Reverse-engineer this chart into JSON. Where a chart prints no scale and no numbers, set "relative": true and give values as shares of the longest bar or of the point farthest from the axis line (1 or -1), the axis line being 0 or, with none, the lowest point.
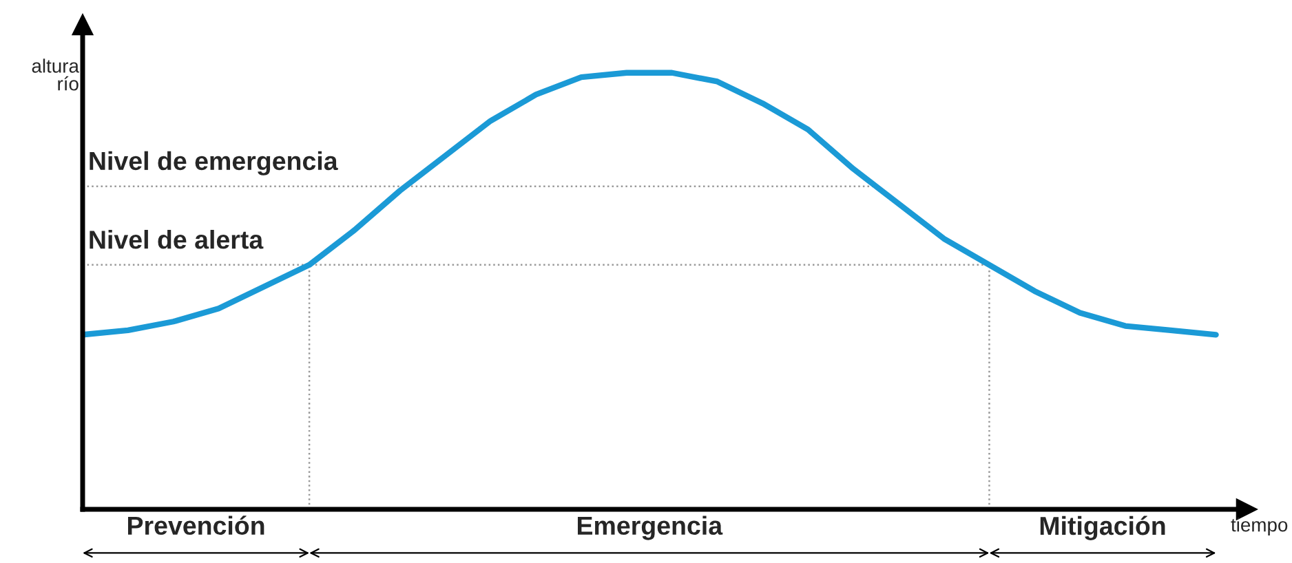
{
  "chart_data": {
    "type": "line",
    "relative": true,
    "xlabel": "tiempo",
    "ylabel": "altura\nrío",
    "marker": "none",
    "line_style": "solid",
    "categories": [
      null,
      null,
      null,
      null,
      null,
      null,
      null,
      null,
      null,
      null,
      null,
      null,
      null,
      null,
      null,
      null,
      null,
      null,
      null,
      null,
      null,
      null,
      null,
      null,
      null,
      null
    ],
    "series": [
      {
        "color": "#1b9ad6",
        "values": [
          0.4,
          0.41,
          0.43,
          0.46,
          0.51,
          0.56,
          0.64,
          0.73,
          0.81,
          0.89,
          0.95,
          0.99,
          1.0,
          1.0,
          0.98,
          0.93,
          0.87,
          0.78,
          0.7,
          0.62,
          0.56,
          0.5,
          0.45,
          0.42,
          0.41,
          0.4
        ]
      }
    ],
    "ref_lines": [
      {
        "axis": "y",
        "value": 0.74,
        "label": "Nivel de emergencia",
        "line_style": "dotted",
        "color": "#999999"
      },
      {
        "axis": "y",
        "value": 0.56,
        "label": "Nivel de alerta",
        "line_style": "dotted",
        "color": "#999999"
      }
    ],
    "annotations": [
      "Prevención",
      "Emergencia",
      "Mitigación"
    ]
  }
}
